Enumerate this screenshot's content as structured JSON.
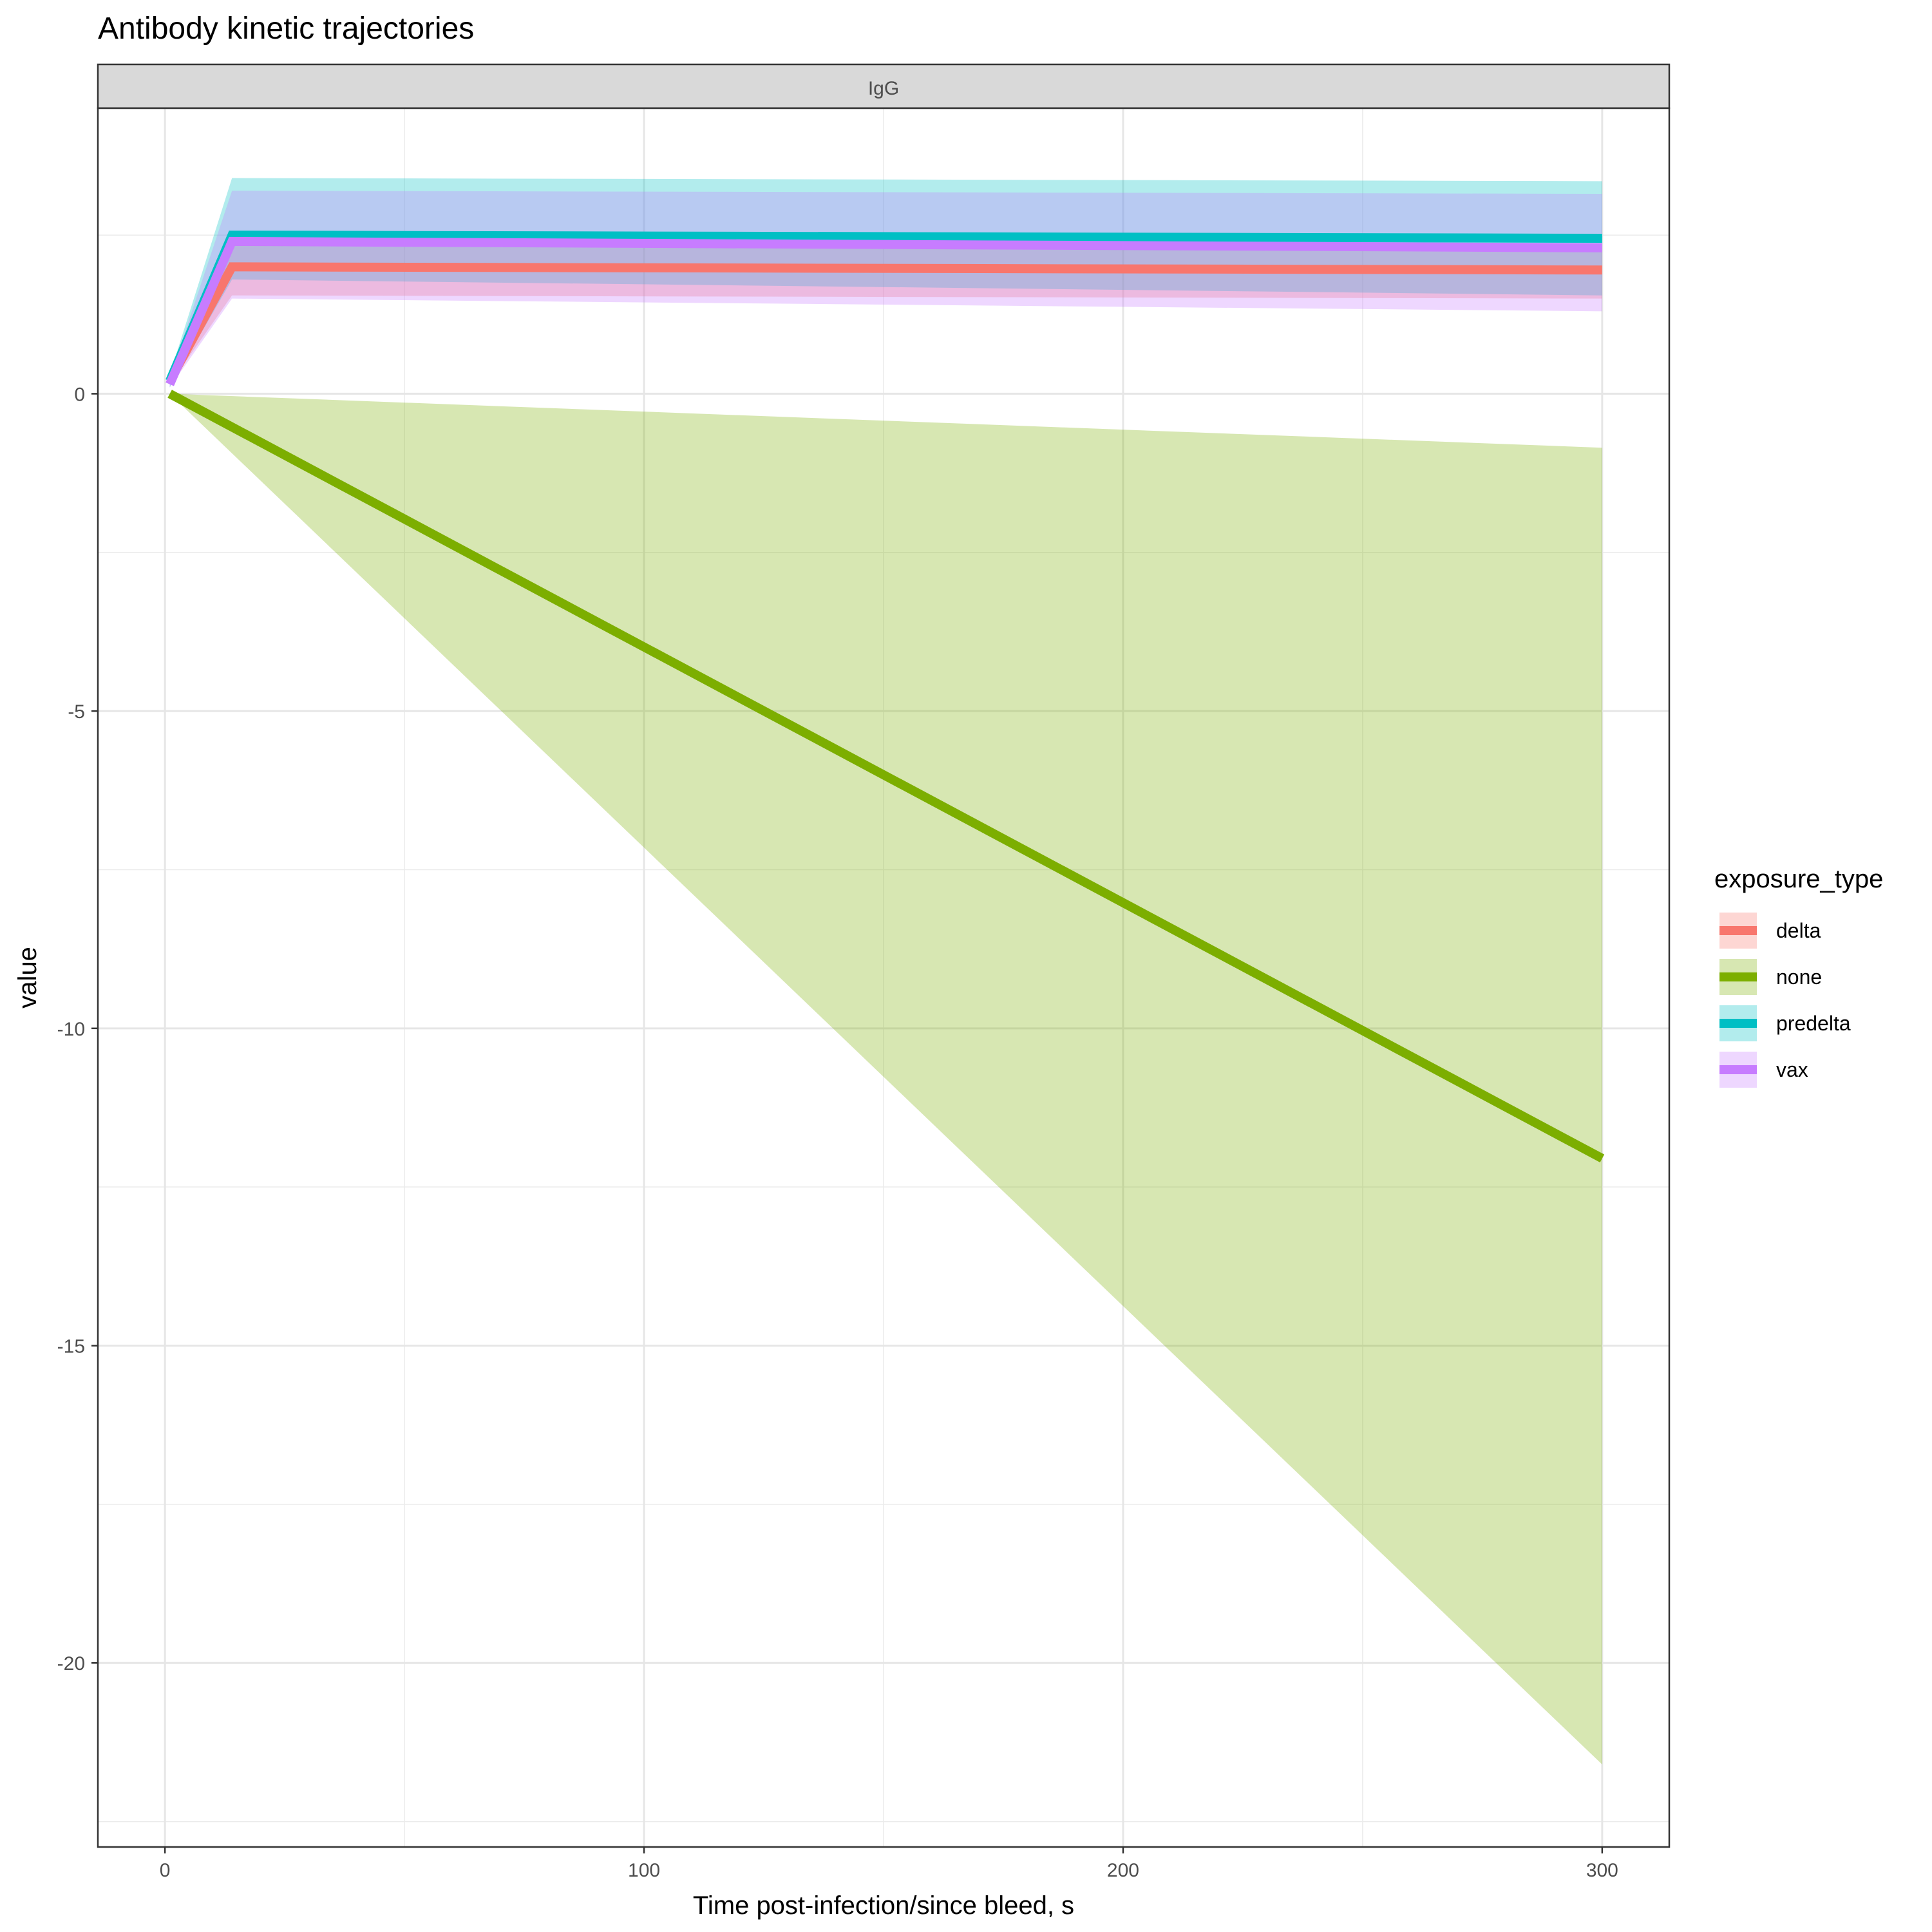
{
  "chart_data": {
    "type": "line",
    "title": "Antibody kinetic trajectories",
    "facet_label": "IgG",
    "xlabel": "Time post-infection/since bleed, s",
    "ylabel": "value",
    "xlim": [
      -14,
      314
    ],
    "ylim": [
      -22.9,
      4.5
    ],
    "x_ticks": [
      0,
      100,
      200,
      300
    ],
    "x_tick_labels": [
      "0",
      "100",
      "200",
      "300"
    ],
    "y_ticks": [
      0,
      -5,
      -10,
      -15,
      -20
    ],
    "y_tick_labels": [
      "0",
      "-5",
      "-10",
      "-15",
      "-20"
    ],
    "grid": true,
    "legend": {
      "title": "exposure_type",
      "placement": "right",
      "entries": [
        "delta",
        "none",
        "predelta",
        "vax"
      ]
    },
    "series": [
      {
        "name": "delta",
        "color": "#F8766D",
        "x": [
          1,
          14,
          300
        ],
        "y": [
          0.2,
          2.0,
          1.95
        ],
        "lower": [
          0.15,
          1.55,
          1.5
        ],
        "upper": [
          0.25,
          2.35,
          2.3
        ]
      },
      {
        "name": "none",
        "color": "#7CAE00",
        "x": [
          1,
          300
        ],
        "y": [
          0.0,
          -12.05
        ],
        "lower": [
          0.0,
          -21.6
        ],
        "upper": [
          0.0,
          -0.85
        ]
      },
      {
        "name": "predelta",
        "color": "#00BFC4",
        "x": [
          1,
          14,
          300
        ],
        "y": [
          0.2,
          2.5,
          2.45
        ],
        "lower": [
          0.1,
          1.8,
          1.55
        ],
        "upper": [
          0.3,
          3.4,
          3.35
        ]
      },
      {
        "name": "vax",
        "color": "#C77CFF",
        "x": [
          1,
          14,
          300
        ],
        "y": [
          0.15,
          2.4,
          2.3
        ],
        "lower": [
          0.1,
          1.5,
          1.3
        ],
        "upper": [
          0.25,
          3.2,
          3.15
        ]
      }
    ]
  }
}
